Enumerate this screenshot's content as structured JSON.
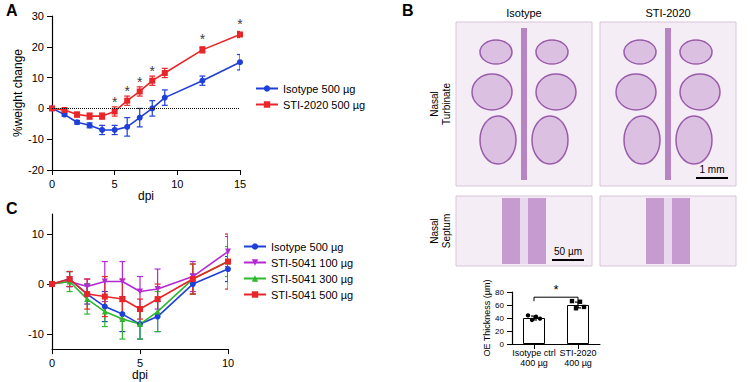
{
  "chart_data": [
    {
      "panel": "A",
      "type": "line",
      "x_label": "dpi",
      "y_label": "%weight change",
      "x": [
        0,
        1,
        2,
        3,
        4,
        5,
        6,
        7,
        8,
        9,
        12,
        15
      ],
      "xlim": [
        0,
        15
      ],
      "xticks": [
        0,
        5,
        10,
        15
      ],
      "ylim": [
        -20,
        30
      ],
      "yticks": [
        -20,
        -10,
        0,
        10,
        20,
        30
      ],
      "grid": false,
      "legend": "right",
      "reference_line": 0,
      "series": [
        {
          "name": "Isotype 500 µg",
          "color": "#1f3fd9",
          "marker": "circle",
          "values": [
            0,
            -2,
            -4.5,
            -5.5,
            -7,
            -7,
            -6,
            -3,
            0,
            3.5,
            9,
            15
          ],
          "errors": [
            0,
            0.5,
            0.6,
            0.8,
            1.5,
            1.5,
            3,
            3,
            2.5,
            2.5,
            1.5,
            2.5
          ]
        },
        {
          "name": "STI-2020 500 µg",
          "color": "#e8262a",
          "marker": "square",
          "values": [
            0,
            -0.5,
            -2,
            -2.5,
            -2.5,
            -1,
            2.5,
            5.5,
            9,
            11.5,
            19,
            24
          ],
          "errors": [
            0,
            0.4,
            0.8,
            1,
            1,
            1.5,
            1.5,
            1.5,
            1.5,
            1.5,
            1,
            1
          ]
        }
      ],
      "annotations": [
        {
          "x": 5,
          "y": 2,
          "text": "*"
        },
        {
          "x": 6,
          "y": 5.5,
          "text": "*"
        },
        {
          "x": 7,
          "y": 8.5,
          "text": "*"
        },
        {
          "x": 8,
          "y": 12,
          "text": "*"
        },
        {
          "x": 12,
          "y": 22.5,
          "text": "*"
        },
        {
          "x": 15,
          "y": 27.5,
          "text": "*"
        }
      ]
    },
    {
      "panel": "C",
      "type": "line",
      "x_label": "dpi",
      "x": [
        0,
        1,
        2,
        3,
        4,
        5,
        6,
        8,
        10
      ],
      "xlim": [
        0,
        10
      ],
      "xticks": [
        0,
        5,
        10
      ],
      "ylim": [
        -13,
        14
      ],
      "yticks": [
        -10,
        0,
        10
      ],
      "grid": false,
      "legend": "right",
      "series": [
        {
          "name": "Isotype 500 µg",
          "color": "#1f3fd9",
          "marker": "circle",
          "values": [
            0,
            1,
            -2,
            -4.5,
            -6,
            -8,
            -6.5,
            0,
            3
          ],
          "errors": [
            0,
            1.5,
            2,
            3,
            3.5,
            3,
            3,
            2,
            2.5
          ]
        },
        {
          "name": "STI-5041 100 µg",
          "color": "#b42ad2",
          "marker": "triangle-down",
          "values": [
            0,
            0.5,
            -0.5,
            0.5,
            0.5,
            -1.5,
            -1,
            1.5,
            6.5
          ],
          "errors": [
            0,
            1,
            1.5,
            4,
            4,
            3,
            4,
            3,
            3
          ]
        },
        {
          "name": "STI-5041 300 µg",
          "color": "#2db82d",
          "marker": "triangle",
          "values": [
            0,
            0.5,
            -3,
            -5.5,
            -7,
            -8,
            -5.5,
            1,
            4.5
          ],
          "errors": [
            0,
            2,
            3,
            3,
            4,
            3,
            4,
            3,
            3
          ]
        },
        {
          "name": "STI-5041 500 µg",
          "color": "#e8262a",
          "marker": "square",
          "values": [
            0,
            1,
            -2,
            -2.5,
            -3,
            -5,
            -3,
            1,
            4.5
          ],
          "errors": [
            0,
            1.5,
            3,
            4,
            4,
            2,
            3,
            3,
            5.5
          ]
        }
      ]
    },
    {
      "type": "bar",
      "y_label": "OE Thickness (µm)",
      "categories": [
        "Isotype ctrl\n400 µg",
        "STI-2020\n400 µg"
      ],
      "values": [
        40,
        60
      ],
      "errors": [
        3,
        4.5
      ],
      "points": [
        [
          44,
          37,
          42,
          39
        ],
        [
          66,
          55,
          65,
          57
        ]
      ],
      "color": "#ffffff",
      "ylim": [
        0,
        80
      ],
      "yticks": [
        0,
        20,
        40,
        60,
        80
      ],
      "grid": false,
      "significance": {
        "between": [
          0,
          1
        ],
        "y": 72,
        "text": "*"
      }
    }
  ],
  "images": {
    "panel": "B",
    "columns": [
      "Isotype",
      "STI-2020"
    ],
    "rows": [
      "Nasal Turbinate",
      "Nasal Septum"
    ],
    "scale_bars": [
      "1 mm",
      "50 µm"
    ]
  }
}
